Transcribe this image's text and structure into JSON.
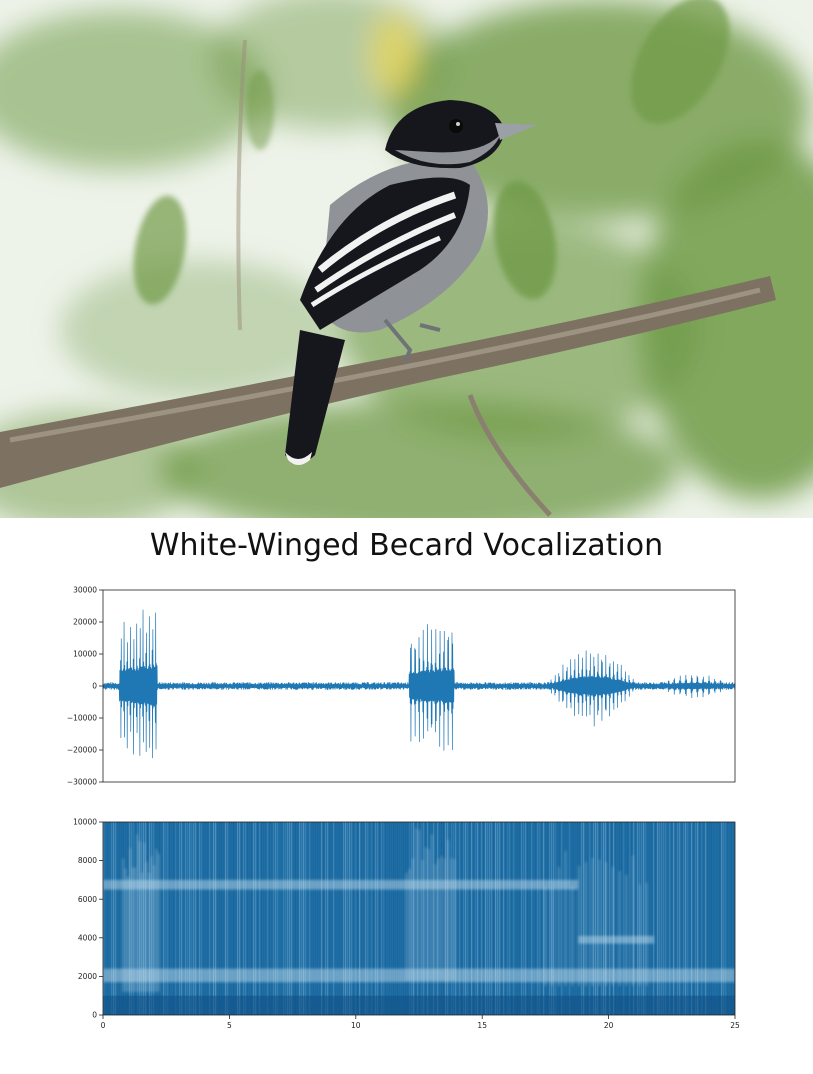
{
  "page": {
    "title": "White-Winged Becard Vocalization"
  },
  "photo": {
    "colors": {
      "sky": "#eef3ea",
      "foliage": "#6f9a47",
      "branch": "#7d7262",
      "bird_black": "#15171c",
      "bird_grey": "#8f9398",
      "bird_white": "#f2f2f2"
    }
  },
  "chart_data": [
    {
      "type": "line",
      "ylim": [
        -30000,
        30000
      ],
      "xlim": [
        0,
        25
      ],
      "yticks": [
        -30000,
        -20000,
        -10000,
        0,
        10000,
        20000,
        30000
      ],
      "ytick_labels": [
        "−30000",
        "−20000",
        "−10000",
        "0",
        "10000",
        "20000",
        "30000"
      ],
      "grid": false,
      "color": "#1f77b4",
      "noise_amplitude": 1200,
      "bursts": [
        {
          "start": 0.65,
          "end": 2.15,
          "peak": 28000,
          "pulses": 12
        },
        {
          "start": 12.1,
          "end": 13.9,
          "peak": 24000,
          "pulses": 11
        },
        {
          "start": 17.5,
          "end": 21.2,
          "peak": 13000,
          "pulses": 24
        },
        {
          "start": 21.8,
          "end": 25.0,
          "peak": 4000,
          "pulses": 14
        }
      ]
    },
    {
      "type": "heatmap",
      "xlim": [
        0,
        25
      ],
      "ylim": [
        0,
        10000
      ],
      "xticks": [
        0,
        5,
        10,
        15,
        20,
        25
      ],
      "yticks": [
        0,
        2000,
        4000,
        6000,
        8000,
        10000
      ],
      "grid": false,
      "colors": {
        "background": "#1f6fa6",
        "high": "#cde4f2",
        "low": "#0e4f83"
      },
      "bands": [
        {
          "freq_low": 6500,
          "freq_high": 7000,
          "start": 0.0,
          "end": 18.8
        },
        {
          "freq_low": 1700,
          "freq_high": 2400,
          "start": 0.0,
          "end": 25.0
        },
        {
          "freq_low": 3700,
          "freq_high": 4100,
          "start": 18.8,
          "end": 21.8
        }
      ],
      "sweeps": [
        {
          "start": 0.8,
          "end": 2.2,
          "freq_high": 9500,
          "freq_low": 1200
        },
        {
          "start": 12.0,
          "end": 13.9,
          "freq_high": 9800,
          "freq_low": 1800
        },
        {
          "start": 17.5,
          "end": 21.5,
          "freq_high": 8500,
          "freq_low": 1500
        }
      ]
    }
  ]
}
